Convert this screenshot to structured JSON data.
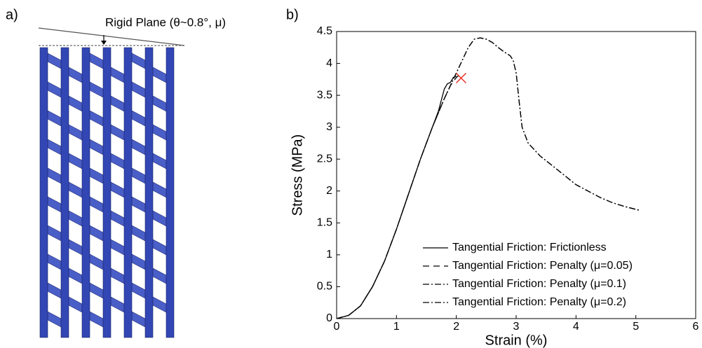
{
  "panel_labels": [
    "a)",
    "b)"
  ],
  "diagram": {
    "label": "Rigid Plane (θ~0.8°, μ)"
  },
  "chart_data": {
    "type": "line",
    "xlabel": "Strain (%)",
    "ylabel": "Stress (MPa)",
    "xlim": [
      0,
      6
    ],
    "ylim": [
      0,
      4.5
    ],
    "xticks": [
      0,
      1,
      2,
      3,
      4,
      5,
      6
    ],
    "yticks": [
      0,
      0.5,
      1,
      1.5,
      2,
      2.5,
      3,
      3.5,
      4,
      4.5
    ],
    "legend": "lower right",
    "grid": false,
    "series": [
      {
        "name": "Tangential Friction: Frictionless",
        "color": "#000000",
        "dash": "solid",
        "x": [
          0,
          0.2,
          0.4,
          0.6,
          0.8,
          1.0,
          1.2,
          1.4,
          1.6,
          1.7,
          1.8,
          1.85,
          1.9,
          1.95,
          2.0
        ],
        "values": [
          0,
          0.05,
          0.2,
          0.5,
          0.9,
          1.4,
          1.95,
          2.5,
          3.0,
          3.25,
          3.6,
          3.68,
          3.7,
          3.78,
          3.8
        ]
      },
      {
        "name": "Tangential Friction: Penalty (μ=0.05)",
        "color": "#000000",
        "dash": "dashed",
        "x": [
          0,
          0.2,
          0.4,
          0.6,
          0.8,
          1.0,
          1.2,
          1.4,
          1.6,
          1.8,
          1.9,
          2.0,
          2.05
        ],
        "values": [
          0,
          0.05,
          0.2,
          0.5,
          0.9,
          1.4,
          1.95,
          2.5,
          3.0,
          3.45,
          3.65,
          3.78,
          3.82
        ]
      },
      {
        "name": "Tangential Friction: Penalty (μ=0.1)",
        "color": "#000000",
        "dash": "dashdot",
        "x": [
          0,
          0.2,
          0.4,
          0.6,
          0.8,
          1.0,
          1.2,
          1.4,
          1.6,
          1.8,
          2.0,
          2.1,
          2.2,
          2.3,
          2.4,
          2.5,
          2.6,
          2.7,
          2.8,
          2.9,
          2.95,
          3.0,
          3.05,
          3.1,
          3.2,
          3.4,
          3.6,
          3.8,
          4.0,
          4.2,
          4.4,
          4.6,
          4.8,
          5.05
        ],
        "values": [
          0,
          0.05,
          0.2,
          0.5,
          0.9,
          1.4,
          1.95,
          2.5,
          3.0,
          3.45,
          3.85,
          4.05,
          4.25,
          4.38,
          4.4,
          4.38,
          4.33,
          4.25,
          4.18,
          4.12,
          4.05,
          3.85,
          3.4,
          3.0,
          2.75,
          2.55,
          2.4,
          2.25,
          2.1,
          2.0,
          1.9,
          1.82,
          1.76,
          1.7
        ]
      },
      {
        "name": "Tangential Friction: Penalty (μ=0.2)",
        "color": "#000000",
        "dash": "dashdot",
        "x": [
          0,
          0.2,
          0.4,
          0.6,
          0.8,
          1.0,
          1.2,
          1.4,
          1.6,
          1.8,
          2.0,
          2.1,
          2.2,
          2.3,
          2.4,
          2.5,
          2.6,
          2.7,
          2.8,
          2.9,
          2.95,
          3.0,
          3.05,
          3.1,
          3.2,
          3.4,
          3.6,
          3.8,
          4.0,
          4.2,
          4.4,
          4.6,
          4.8,
          5.05
        ],
        "values": [
          0,
          0.05,
          0.2,
          0.5,
          0.9,
          1.4,
          1.95,
          2.5,
          3.0,
          3.45,
          3.85,
          4.05,
          4.25,
          4.38,
          4.4,
          4.38,
          4.33,
          4.25,
          4.18,
          4.12,
          4.05,
          3.85,
          3.4,
          3.0,
          2.75,
          2.55,
          2.4,
          2.25,
          2.1,
          2.0,
          1.9,
          1.82,
          1.76,
          1.7
        ]
      }
    ],
    "markers": [
      {
        "x": 2.08,
        "y": 3.77,
        "color": "#e8322a"
      }
    ]
  }
}
